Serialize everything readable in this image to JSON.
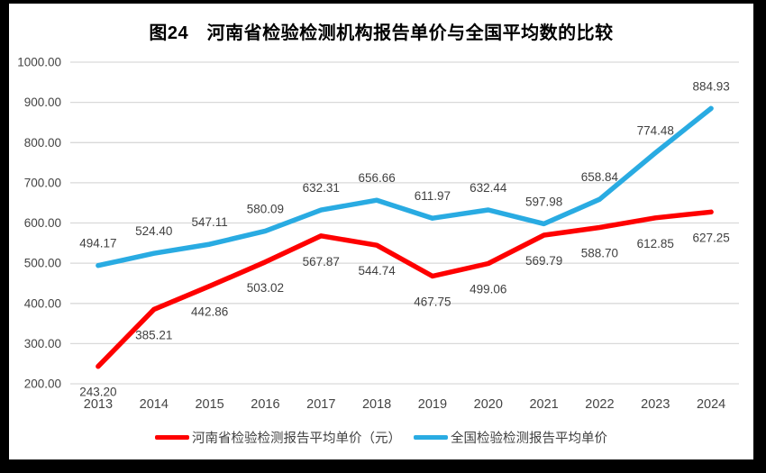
{
  "chart_data": {
    "type": "line",
    "title": "图24　河南省检验检测机构报告单价与全国平均数的比较",
    "categories": [
      "2013",
      "2014",
      "2015",
      "2016",
      "2017",
      "2018",
      "2019",
      "2020",
      "2021",
      "2022",
      "2023",
      "2024"
    ],
    "series": [
      {
        "name": "河南省检验检测报告平均单价（元）",
        "color": "#fe0000",
        "label_position": "below",
        "values": [
          243.2,
          385.21,
          442.86,
          503.02,
          567.87,
          544.74,
          467.75,
          499.06,
          569.79,
          588.7,
          612.85,
          627.25
        ],
        "labels": [
          "243.20",
          "385.21",
          "442.86",
          "503.02",
          "567.87",
          "544.74",
          "467.75",
          "499.06",
          "569.79",
          "588.70",
          "612.85",
          "627.25"
        ]
      },
      {
        "name": "全国检验检测报告平均单价",
        "color": "#29abe2",
        "label_position": "above",
        "values": [
          494.17,
          524.4,
          547.11,
          580.09,
          632.31,
          656.66,
          611.97,
          632.44,
          597.98,
          658.84,
          774.48,
          884.93
        ],
        "labels": [
          "494.17",
          "524.40",
          "547.11",
          "580.09",
          "632.31",
          "656.66",
          "611.97",
          "632.44",
          "597.98",
          "658.84",
          "774.48",
          "884.93"
        ]
      }
    ],
    "y_axis": {
      "min": 200,
      "max": 1000,
      "tick_values": [
        200,
        300,
        400,
        500,
        600,
        700,
        800,
        900,
        1000
      ],
      "tick_labels": [
        "200.00",
        "300.00",
        "400.00",
        "500.00",
        "600.00",
        "700.00",
        "800.00",
        "900.00",
        "1000.00"
      ]
    },
    "grid": true,
    "legend_position": "bottom",
    "colors": {
      "grid": "#d9d9d9",
      "axis_text": "#444444",
      "data_label_text": "#404040",
      "title_text": "#000000",
      "background": "#ffffff",
      "frame": "#000000"
    }
  }
}
